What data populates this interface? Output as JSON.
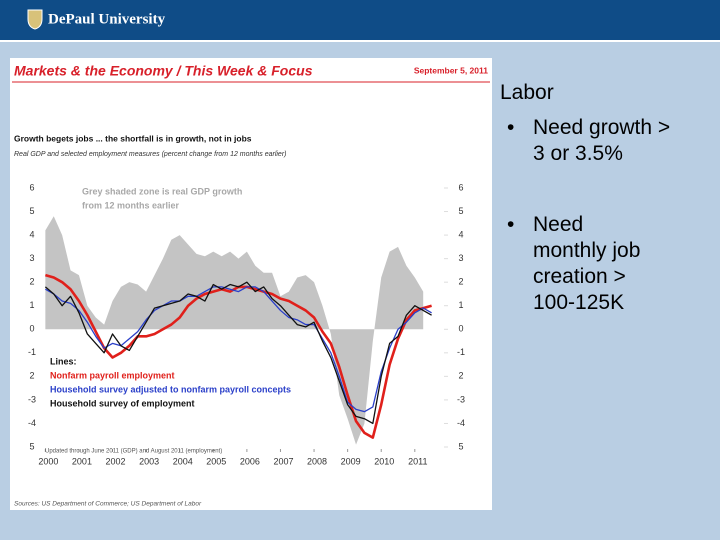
{
  "header": {
    "logo": "DePaul University"
  },
  "slide": {
    "heading": "Labor",
    "bullets": [
      "Need growth > 3 or 3.5%",
      "Need monthly job creation > 100-125K"
    ]
  },
  "chart_data": {
    "type": "line",
    "banner": "Markets & the Economy / This Week & Focus",
    "date": "September 5, 2011",
    "title": "Growth begets jobs ... the shortfall is in growth, not in jobs",
    "subtitle": "Real GDP and selected employment measures (percent change from 12 months earlier)",
    "annotation": [
      "Grey shaded zone is real GDP growth",
      "from 12 months earlier"
    ],
    "legend_title": "Lines:",
    "note": "Updated through June 2011 (GDP) and August 2011 (employment)",
    "source": "Sources: US Department of Commerce; US Department of Labor",
    "x": [
      2000,
      2000.25,
      2000.5,
      2000.75,
      2001,
      2001.25,
      2001.5,
      2001.75,
      2002,
      2002.25,
      2002.5,
      2002.75,
      2003,
      2003.25,
      2003.5,
      2003.75,
      2004,
      2004.25,
      2004.5,
      2004.75,
      2005,
      2005.25,
      2005.5,
      2005.75,
      2006,
      2006.25,
      2006.5,
      2006.75,
      2007,
      2007.25,
      2007.5,
      2007.75,
      2008,
      2008.25,
      2008.5,
      2008.75,
      2009,
      2009.25,
      2009.5,
      2009.75,
      2010,
      2010.25,
      2010.5,
      2010.75,
      2011,
      2011.25,
      2011.5
    ],
    "xlim": [
      1999.9,
      2011.75
    ],
    "xticks": [
      2000,
      2001,
      2002,
      2003,
      2004,
      2005,
      2006,
      2007,
      2008,
      2009,
      2010,
      2011
    ],
    "ylim": [
      -5,
      6
    ],
    "yticks": [
      6,
      5,
      4,
      3,
      2,
      1,
      0,
      -1,
      {
        "value": -2,
        "label": "2"
      },
      -3,
      -4,
      {
        "value": -5,
        "label": "5"
      }
    ],
    "series": [
      {
        "name": "Real GDP",
        "kind": "area",
        "color": "#c4c4c4",
        "values": [
          4.2,
          4.8,
          4.0,
          2.5,
          2.3,
          1.0,
          0.5,
          0.2,
          1.2,
          1.8,
          2.0,
          1.9,
          1.6,
          2.3,
          3.0,
          3.8,
          4.0,
          3.6,
          3.2,
          3.1,
          3.3,
          3.1,
          3.3,
          3.0,
          3.3,
          2.7,
          2.4,
          2.4,
          1.4,
          1.6,
          2.2,
          2.3,
          2.0,
          1.0,
          -0.2,
          -2.8,
          -3.8,
          -4.9,
          -4.0,
          -0.5,
          2.2,
          3.3,
          3.5,
          2.7,
          2.2,
          1.6,
          null
        ]
      },
      {
        "name": "Nonfarm payroll employment",
        "color": "#e0201b",
        "values": [
          2.3,
          2.2,
          2.0,
          1.7,
          1.2,
          0.6,
          -0.1,
          -0.8,
          -1.2,
          -1.0,
          -0.7,
          -0.3,
          -0.3,
          -0.2,
          0.0,
          0.2,
          0.5,
          1.0,
          1.3,
          1.5,
          1.6,
          1.7,
          1.6,
          1.8,
          1.8,
          1.7,
          1.6,
          1.5,
          1.3,
          1.2,
          1.0,
          0.8,
          0.5,
          -0.1,
          -0.6,
          -1.6,
          -2.8,
          -3.9,
          -4.4,
          -4.6,
          -3.2,
          -1.5,
          -0.4,
          0.4,
          0.8,
          0.9,
          1.0
        ]
      },
      {
        "name": "Household survey adjusted to nonfarm payroll concepts",
        "color": "#2a3fc9",
        "values": [
          1.7,
          1.5,
          1.2,
          1.1,
          0.8,
          0.3,
          -0.3,
          -0.8,
          -0.6,
          -0.7,
          -0.4,
          -0.1,
          0.4,
          0.8,
          1.0,
          1.2,
          1.2,
          1.4,
          1.4,
          1.6,
          1.8,
          1.8,
          1.7,
          1.6,
          1.8,
          1.8,
          1.6,
          1.2,
          0.8,
          0.5,
          0.4,
          0.2,
          0.2,
          -0.4,
          -1.0,
          -2.0,
          -3.1,
          -3.4,
          -3.5,
          -3.3,
          -1.8,
          -0.8,
          0.0,
          0.3,
          0.7,
          0.9,
          0.7
        ]
      },
      {
        "name": "Household survey of employment",
        "color": "#111111",
        "values": [
          1.8,
          1.5,
          1.0,
          1.4,
          0.7,
          -0.2,
          -0.6,
          -1.0,
          -0.2,
          -0.7,
          -0.9,
          -0.3,
          0.3,
          0.9,
          1.0,
          1.1,
          1.2,
          1.5,
          1.4,
          1.2,
          1.9,
          1.7,
          1.9,
          1.8,
          2.0,
          1.6,
          1.8,
          1.3,
          1.0,
          0.6,
          0.2,
          0.1,
          0.3,
          -0.5,
          -1.2,
          -2.2,
          -3.2,
          -3.7,
          -3.8,
          -4.0,
          -2.0,
          -0.6,
          -0.3,
          0.6,
          1.0,
          0.8,
          0.6
        ]
      }
    ]
  }
}
